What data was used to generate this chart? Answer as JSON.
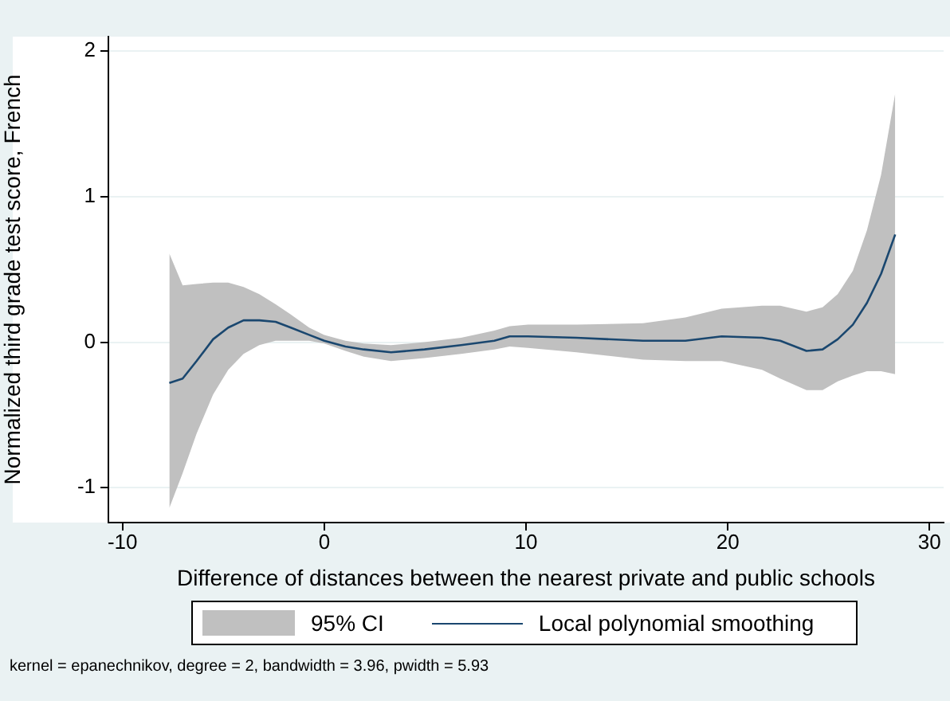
{
  "chart_data": {
    "type": "line",
    "xlabel": "Difference of distances between the nearest private and public schools",
    "ylabel": "Normalized third grade test score, French",
    "x": [
      -7.68,
      -7.02,
      -6.33,
      -5.51,
      -4.76,
      -4.0,
      -3.22,
      -2.41,
      -1.66,
      -0.75,
      0,
      1.05,
      1.96,
      3.31,
      4.97,
      6.78,
      8.43,
      9.19,
      10.1,
      12.5,
      15.8,
      17.9,
      19.7,
      21.7,
      22.6,
      23.9,
      24.7,
      25.45,
      26.2,
      26.9,
      27.6,
      28.3
    ],
    "series": [
      {
        "name": "Local polynomial smoothing",
        "color": "#1a476f",
        "values": [
          -0.28,
          -0.25,
          -0.13,
          0.02,
          0.1,
          0.15,
          0.15,
          0.14,
          0.1,
          0.05,
          0.01,
          -0.03,
          -0.05,
          -0.07,
          -0.05,
          -0.02,
          0.01,
          0.04,
          0.04,
          0.03,
          0.01,
          0.01,
          0.04,
          0.03,
          0.01,
          -0.06,
          -0.05,
          0.02,
          0.12,
          0.27,
          0.47,
          0.74
        ],
        "lower": [
          -1.14,
          -0.9,
          -0.63,
          -0.36,
          -0.19,
          -0.08,
          -0.02,
          0.01,
          0.01,
          0.01,
          -0.01,
          -0.06,
          -0.1,
          -0.13,
          -0.11,
          -0.08,
          -0.05,
          -0.03,
          -0.04,
          -0.07,
          -0.12,
          -0.13,
          -0.13,
          -0.19,
          -0.25,
          -0.33,
          -0.33,
          -0.27,
          -0.23,
          -0.2,
          -0.2,
          -0.22
        ],
        "upper": [
          0.61,
          0.39,
          0.4,
          0.41,
          0.41,
          0.38,
          0.33,
          0.26,
          0.19,
          0.1,
          0.05,
          0.01,
          -0.01,
          -0.02,
          0.0,
          0.03,
          0.08,
          0.11,
          0.12,
          0.12,
          0.13,
          0.17,
          0.23,
          0.25,
          0.25,
          0.21,
          0.24,
          0.33,
          0.49,
          0.77,
          1.15,
          1.71
        ]
      }
    ],
    "xlim": [
      -10.7,
      30.7
    ],
    "xticks": [
      -10,
      0,
      10,
      20,
      30
    ],
    "ylim": [
      -1.24,
      2.1
    ],
    "yticks": [
      -1,
      0,
      1,
      2
    ],
    "grid": "y",
    "legend": "bottom",
    "line_style": "solid",
    "marker": "none",
    "annotations": [
      "95% CI",
      "kernel = epanechnikov, degree = 2, bandwidth = 3.96, pwidth = 5.93"
    ]
  }
}
